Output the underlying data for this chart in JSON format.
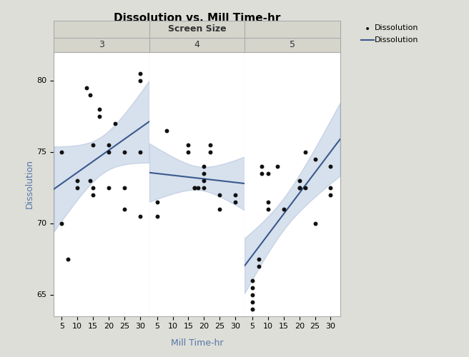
{
  "title": "Dissolution vs. Mill Time-hr",
  "facet_label": "Screen Size",
  "panels": [
    "3",
    "4",
    "5"
  ],
  "xlabel": "Mill Time-hr",
  "ylabel": "Dissolution",
  "ylim": [
    63.5,
    82
  ],
  "yticks": [
    65,
    70,
    75,
    80
  ],
  "xlim": [
    2.5,
    33
  ],
  "xticks": [
    5,
    10,
    15,
    20,
    25,
    30
  ],
  "background_plot": "#ffffff",
  "background_outer": "#deded8",
  "line_color": "#3a5a8c",
  "ci_color": "#8fa8cc",
  "ci_alpha": 0.35,
  "dot_color": "#111111",
  "dot_size": 18,
  "data_3_x": [
    5,
    5,
    7,
    10,
    10,
    13,
    14,
    14,
    15,
    15,
    15,
    17,
    17,
    20,
    20,
    20,
    22,
    25,
    25,
    25,
    30,
    30,
    30,
    30
  ],
  "data_3_y": [
    70,
    75,
    67.5,
    72.5,
    73,
    79.5,
    79,
    73,
    72.5,
    75.5,
    72,
    78,
    77.5,
    75,
    75.5,
    72.5,
    77,
    71,
    75,
    72.5,
    70.5,
    75,
    80.5,
    80
  ],
  "data_4_x": [
    5,
    5,
    8,
    15,
    15,
    17,
    17,
    18,
    20,
    20,
    20,
    20,
    22,
    22,
    25,
    25,
    30,
    30
  ],
  "data_4_y": [
    70.5,
    71.5,
    76.5,
    75,
    75.5,
    72.5,
    72.5,
    72.5,
    74,
    73,
    72.5,
    73.5,
    75.5,
    75,
    72,
    71,
    72,
    71.5
  ],
  "data_5_x": [
    5,
    5,
    5,
    5,
    5,
    7,
    7,
    8,
    8,
    10,
    10,
    10,
    13,
    15,
    20,
    20,
    20,
    22,
    22,
    25,
    25,
    30,
    30,
    30
  ],
  "data_5_y": [
    65,
    64.5,
    66,
    65.5,
    64,
    67,
    67.5,
    73.5,
    74,
    71,
    71.5,
    73.5,
    74,
    71,
    72.5,
    73,
    72.5,
    75,
    72.5,
    74.5,
    70,
    74,
    72.5,
    72
  ],
  "slope_3": 0.155,
  "intercept_3": 72.0,
  "slope_4": -0.025,
  "intercept_4": 73.6,
  "slope_5": 0.29,
  "intercept_5": 66.3,
  "ci_scale_3": 1.0,
  "ci_scale_4": 1.0,
  "ci_scale_5": 1.0,
  "title_fontsize": 11,
  "label_fontsize": 9,
  "tick_fontsize": 8,
  "facet_header_color": "#d5d5cc",
  "facet_text_color": "#333333",
  "ylabel_color": "#5577aa",
  "xlabel_color": "#5577aa"
}
